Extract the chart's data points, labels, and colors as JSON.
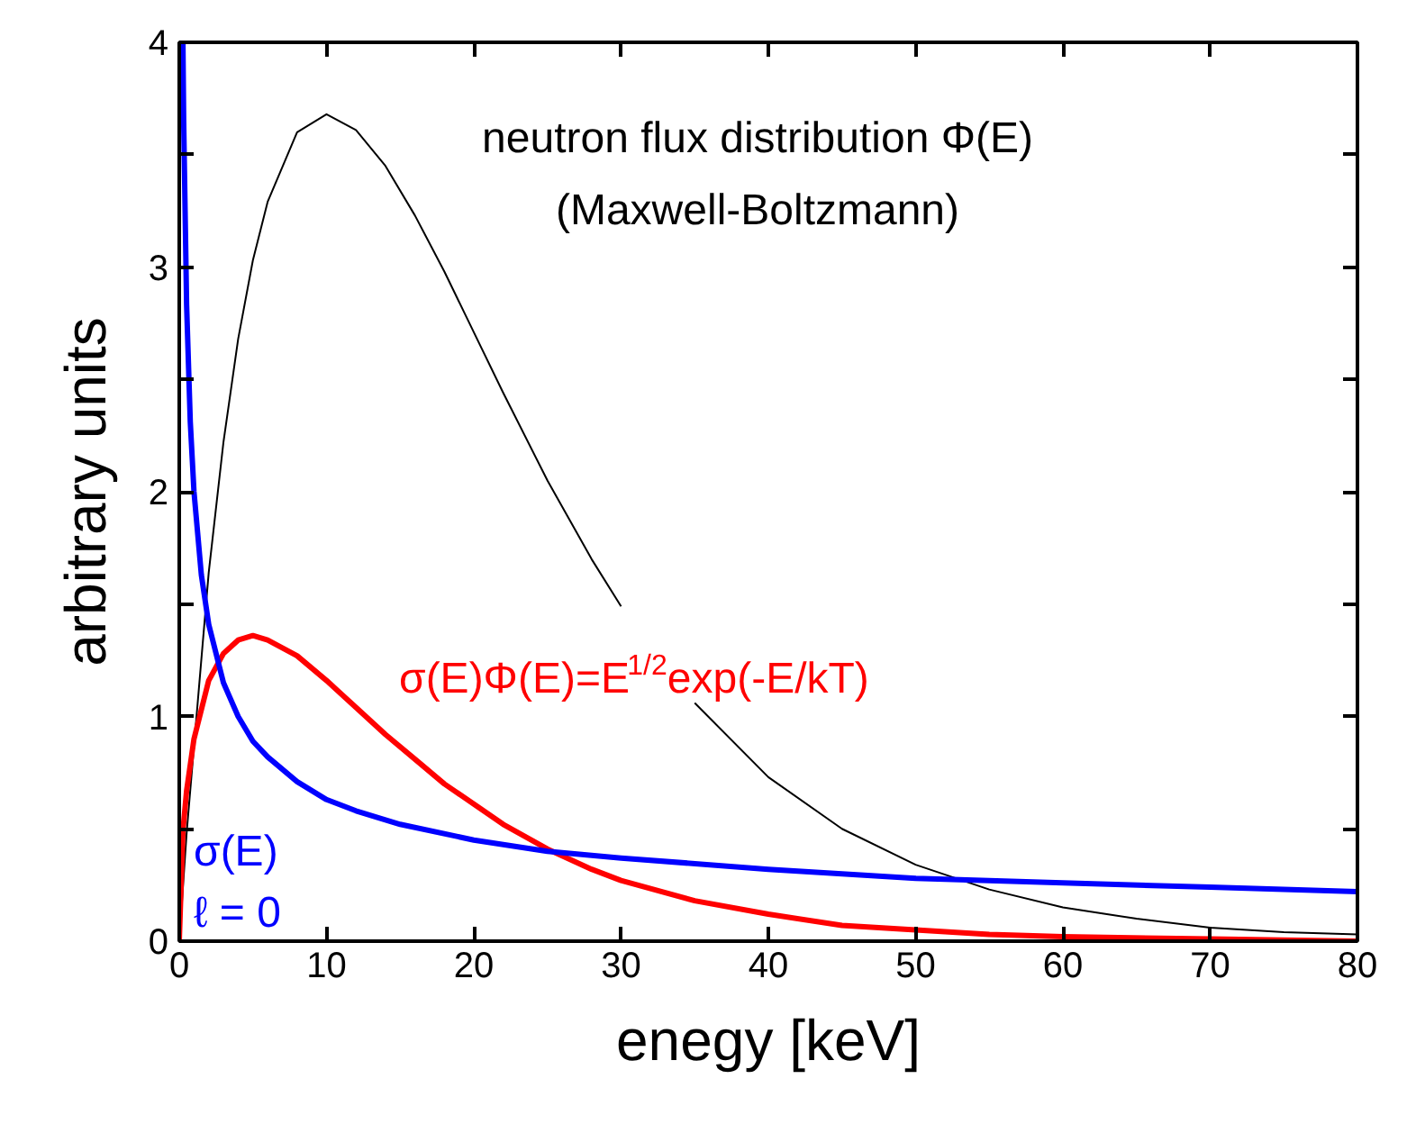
{
  "chart_data": {
    "type": "line",
    "xlabel": "enegy [keV]",
    "ylabel": "arbitrary units",
    "xlim": [
      0,
      80
    ],
    "ylim": [
      0,
      4
    ],
    "xticks": [
      0,
      10,
      20,
      30,
      40,
      50,
      60,
      70,
      80
    ],
    "yticks": [
      0,
      {
        "value": 0.5,
        "label": null
      },
      1,
      {
        "value": 1.5,
        "label": null
      },
      2,
      {
        "value": 2.5,
        "label": null
      },
      3,
      {
        "value": 3.5,
        "label": null
      },
      4
    ],
    "grid": false,
    "marker": "none",
    "line_style": "solid",
    "series": [
      {
        "name": "neutron flux distribution Φ(E)\n(Maxwell-Boltzmann)",
        "color": "#000000",
        "x": [
          0,
          0.5,
          2,
          3,
          4,
          5,
          6,
          8,
          10,
          12,
          14,
          16,
          18,
          20,
          22,
          25,
          28,
          30,
          32,
          35,
          40,
          45,
          50,
          55,
          60,
          65,
          70,
          75,
          80
        ],
        "values": [
          0,
          0.48,
          1.64,
          2.22,
          2.68,
          3.03,
          3.29,
          3.6,
          3.68,
          3.61,
          3.45,
          3.23,
          2.98,
          2.71,
          2.44,
          2.05,
          1.7,
          1.49,
          null,
          1.06,
          0.73,
          0.5,
          0.34,
          0.23,
          0.15,
          0.1,
          0.06,
          0.04,
          0.03
        ]
      },
      {
        "name": "σ(E)Φ(E)=E$^{1/2}$exp(-E/kT)",
        "color": "#ff0000",
        "x": [
          0,
          0.25,
          0.5,
          1,
          2,
          3,
          4,
          5,
          6,
          8,
          10,
          12,
          14,
          16,
          18,
          20,
          22,
          25,
          28,
          30,
          35,
          40,
          45,
          50,
          55,
          60,
          70,
          80
        ],
        "values": [
          0,
          0.49,
          0.67,
          0.9,
          1.16,
          1.28,
          1.34,
          1.36,
          1.34,
          1.27,
          1.16,
          1.04,
          0.92,
          0.81,
          0.7,
          0.61,
          0.52,
          0.41,
          0.32,
          0.27,
          0.18,
          0.12,
          0.07,
          0.05,
          0.03,
          0.02,
          0.01,
          0.0
        ]
      },
      {
        "name": "σ(E)\nℓ = 0",
        "color": "#0000ff",
        "x": [
          0.25,
          0.3,
          0.5,
          0.75,
          1,
          1.5,
          2,
          3,
          4,
          5,
          6,
          8,
          10,
          12,
          15,
          20,
          25,
          30,
          40,
          50,
          60,
          70,
          80
        ],
        "values": [
          4.0,
          3.65,
          2.83,
          2.31,
          2.0,
          1.63,
          1.41,
          1.15,
          1.0,
          0.89,
          0.82,
          0.71,
          0.63,
          0.58,
          0.52,
          0.45,
          0.4,
          0.37,
          0.32,
          0.28,
          0.26,
          0.24,
          0.22
        ]
      }
    ]
  }
}
